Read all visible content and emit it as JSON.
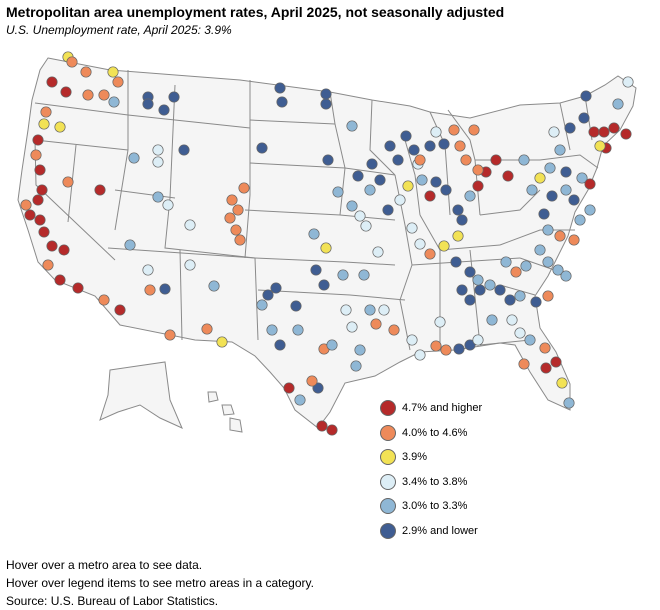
{
  "header": {
    "title": "Metropolitan area unemployment rates, April 2025, not seasonally adjusted",
    "subtitle": "U.S. Unemployment rate, April 2025: 3.9%"
  },
  "legend": {
    "items": [
      {
        "id": "c1",
        "label": "4.7% and higher",
        "color": "#b52a2a"
      },
      {
        "id": "c2",
        "label": "4.0% to 4.6%",
        "color": "#ee8a5a"
      },
      {
        "id": "c3",
        "label": "3.9%",
        "color": "#f2e255"
      },
      {
        "id": "c4",
        "label": "3.4% to 3.8%",
        "color": "#ddeef6"
      },
      {
        "id": "c5",
        "label": "3.0% to 3.3%",
        "color": "#8fb7d5"
      },
      {
        "id": "c6",
        "label": "2.9% and lower",
        "color": "#3f5d92"
      }
    ]
  },
  "notes": {
    "hover_metro": "Hover over a metro area to see data.",
    "hover_legend": "Hover over legend items to see metro areas in a category.",
    "source": "Source: U.S. Bureau of Labor Statistics."
  },
  "map": {
    "land_color": "#f5f5f5",
    "border_color": "#8a8a8a"
  }
}
